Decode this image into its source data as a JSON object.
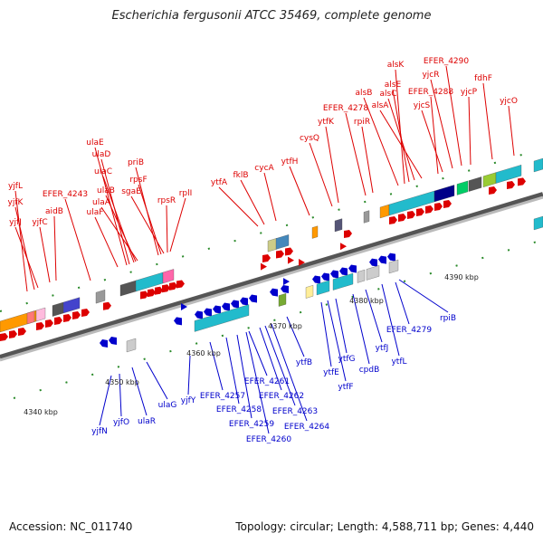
{
  "title": "Escherichia fergusonii ATCC 35469, complete genome",
  "accession": "Accession: NC_011740",
  "summary": "Topology: circular; Length: 4,588,711 bp; Genes: 4,440",
  "colors": {
    "forward": "#dd0000",
    "reverse": "#0000cc",
    "backbone": "#888888"
  },
  "ruler_ticks": [
    "4340 kbp",
    "4350 kbp",
    "4360 kbp",
    "4370 kbp",
    "4380 kbp",
    "4390 kbp"
  ],
  "forward_labels": [
    "yjfL",
    "yjfK",
    "yjfJ",
    "aidB",
    "yjfC",
    "EFER_4243",
    "ulaF",
    "ulaE",
    "ulaD",
    "ulaC",
    "ulaB",
    "ulaA",
    "priB",
    "rpsF",
    "sgaE",
    "rpsR",
    "rplI",
    "ytfA",
    "fklB",
    "cycA",
    "ytfH",
    "cysQ",
    "ytfK",
    "EFER_4278",
    "rpiR",
    "alsB",
    "alsK",
    "alsE",
    "alsC",
    "alsA",
    "EFER_4288",
    "yjcS",
    "yjcR",
    "EFER_4290",
    "yjcP",
    "fdhF",
    "yjcO"
  ],
  "reverse_labels": [
    "yjfN",
    "yjfO",
    "ulaR",
    "ulaG",
    "yjfY",
    "EFER_4257",
    "EFER_4258",
    "EFER_4259",
    "EFER_4260",
    "EFER_4261",
    "EFER_4262",
    "EFER_4263",
    "EFER_4264",
    "ytfB",
    "ytfE",
    "ytfF",
    "ytfG",
    "cpdB",
    "ytfJ",
    "ytfL",
    "EFER_4279",
    "rpiB"
  ]
}
